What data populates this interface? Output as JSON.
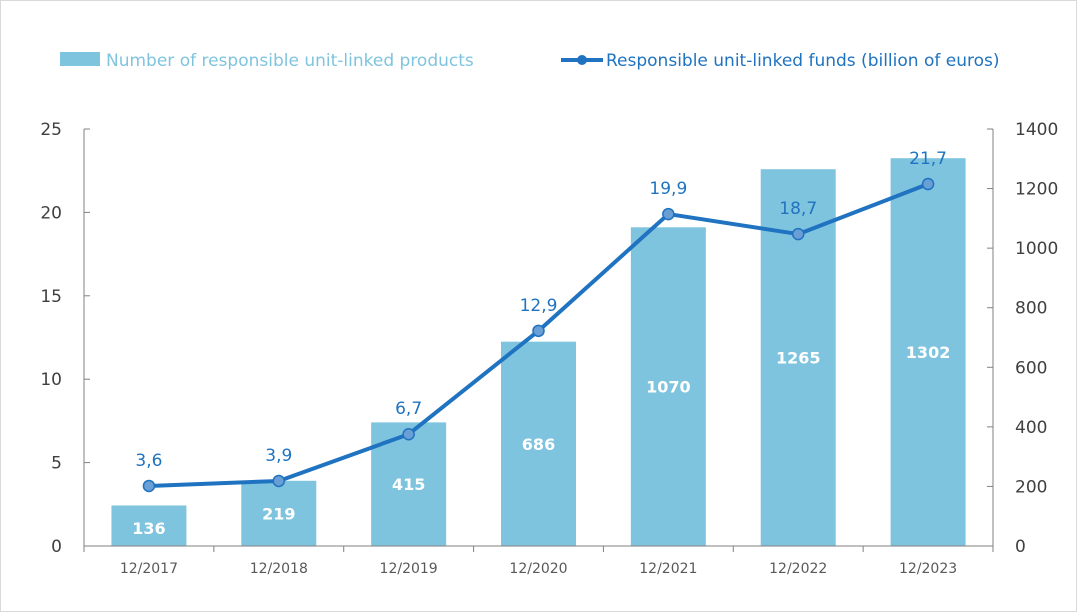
{
  "chart_data": {
    "type": "bar",
    "categories": [
      "12/2017",
      "12/2018",
      "12/2019",
      "12/2020",
      "12/2021",
      "12/2022",
      "12/2023"
    ],
    "series": [
      {
        "name": "Number of responsible unit-linked products",
        "type": "bar",
        "axis": "right",
        "values": [
          136,
          219,
          415,
          686,
          1070,
          1265,
          1302
        ],
        "labels": [
          "136",
          "219",
          "415",
          "686",
          "1070",
          "1265",
          "1302"
        ],
        "color": "#7fc4df"
      },
      {
        "name": "Responsible unit-linked funds (billion of euros)",
        "type": "line",
        "axis": "left",
        "values": [
          3.6,
          3.9,
          6.7,
          12.9,
          19.9,
          18.7,
          21.7
        ],
        "labels": [
          "3,6",
          "3,9",
          "6,7",
          "12,9",
          "19,9",
          "18,7",
          "21,7"
        ],
        "color": "#1f73c0"
      }
    ],
    "left_axis": {
      "min": 0,
      "max": 25,
      "ticks": [
        0,
        5,
        10,
        15,
        20,
        25
      ],
      "tick_labels": [
        "0",
        "5",
        "10",
        "15",
        "20",
        "25"
      ]
    },
    "right_axis": {
      "min": 0,
      "max": 1400,
      "ticks": [
        0,
        200,
        400,
        600,
        800,
        1000,
        1200,
        1400
      ],
      "tick_labels": [
        "0",
        "200",
        "400",
        "600",
        "800",
        "1000",
        "1200",
        "1400"
      ]
    },
    "legend_position": "top",
    "grid": false
  }
}
